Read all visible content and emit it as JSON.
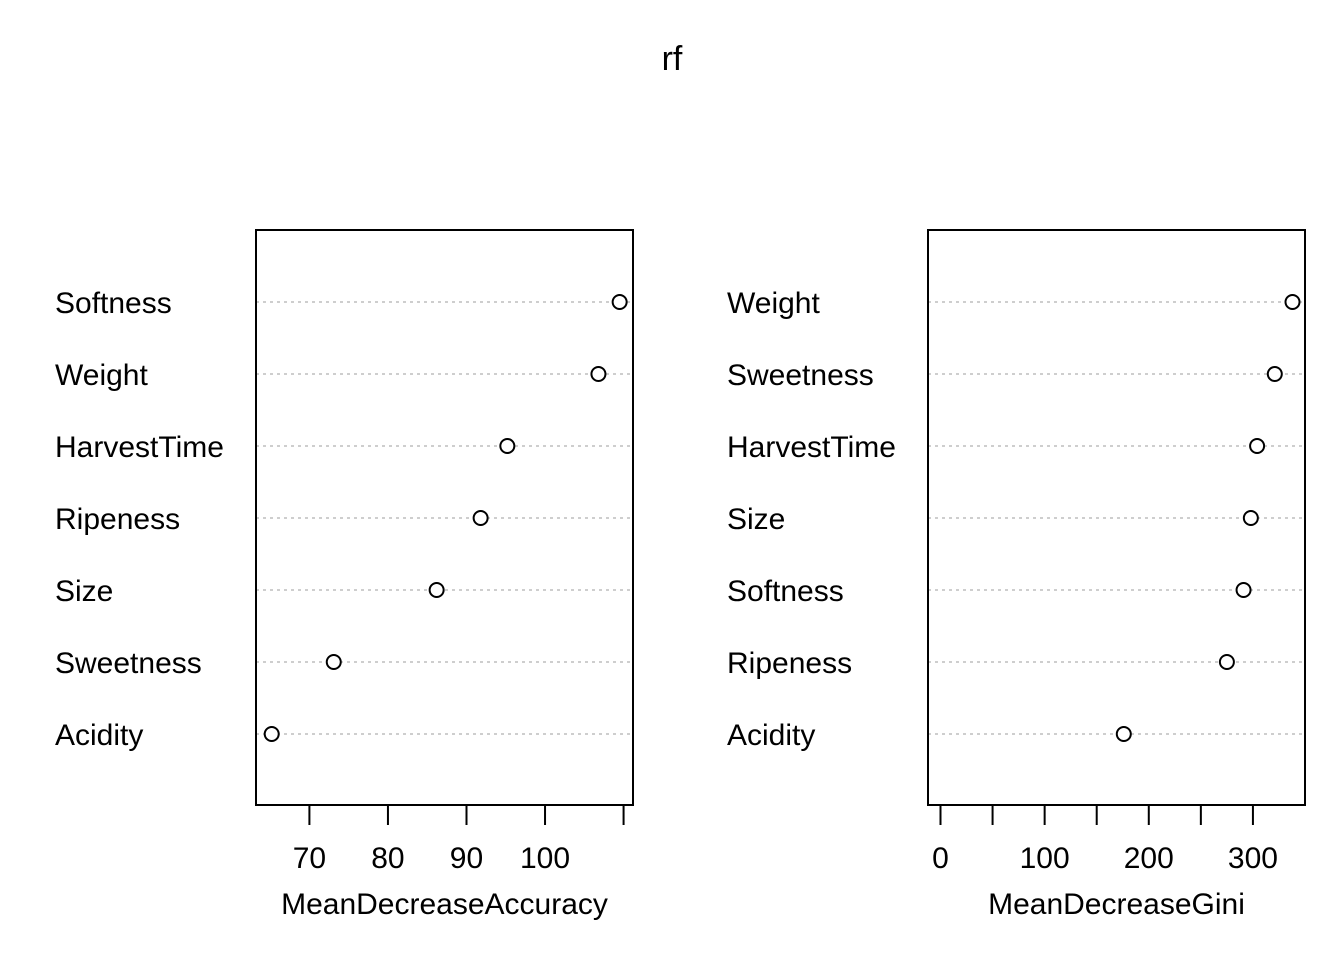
{
  "title": "rf",
  "colors": {
    "frame": "#000000",
    "grid": "#bebebe",
    "point_fill": "#ffffff"
  },
  "chart_data": [
    {
      "type": "scatter",
      "subtype": "dotchart",
      "xlabel": "MeanDecreaseAccuracy",
      "ylabel": "",
      "xlim": [
        63.2,
        111.2
      ],
      "xticks": [
        70,
        80,
        90,
        100,
        110
      ],
      "xtick_labels": [
        "70",
        "80",
        "90",
        "100",
        ""
      ],
      "grid": "dotted horizontal",
      "categories": [
        "Softness",
        "Weight",
        "HarvestTime",
        "Ripeness",
        "Size",
        "Sweetness",
        "Acidity"
      ],
      "values": [
        109.5,
        106.8,
        95.2,
        91.8,
        86.2,
        73.1,
        65.2
      ]
    },
    {
      "type": "scatter",
      "subtype": "dotchart",
      "xlabel": "MeanDecreaseGini",
      "ylabel": "",
      "xlim": [
        -12,
        350
      ],
      "xticks": [
        0,
        50,
        100,
        150,
        200,
        250,
        300
      ],
      "xtick_labels": [
        "0",
        "",
        "100",
        "",
        "200",
        "",
        "300"
      ],
      "grid": "dotted horizontal",
      "categories": [
        "Weight",
        "Sweetness",
        "HarvestTime",
        "Size",
        "Softness",
        "Ripeness",
        "Acidity"
      ],
      "values": [
        338,
        321,
        304,
        298,
        291,
        275,
        176
      ]
    }
  ]
}
